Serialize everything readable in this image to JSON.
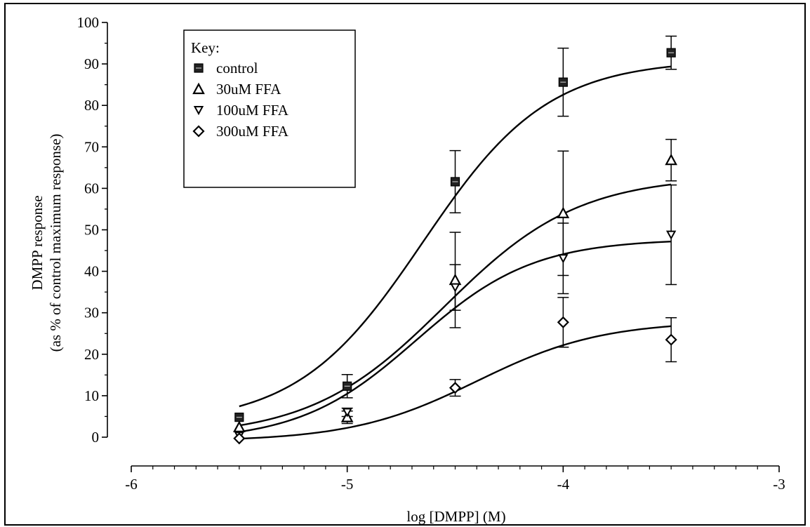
{
  "chart_data": {
    "type": "line",
    "title": "",
    "xlabel": "log [DMPP] (M)",
    "ylabel_line1": "DMPP response",
    "ylabel_line2": "(as % of control maximum response)",
    "xlim": [
      -6,
      -3
    ],
    "ylim": [
      0,
      100
    ],
    "x_ticks": [
      -6,
      -5,
      -4,
      -3
    ],
    "y_ticks": [
      0,
      10,
      20,
      30,
      40,
      50,
      60,
      70,
      80,
      90,
      100
    ],
    "grid": false,
    "legend_title": "Key:",
    "legend_position": "top-left",
    "series": [
      {
        "name": "control",
        "marker": "square",
        "x": [
          -5.5,
          -5.0,
          -4.5,
          -4.0,
          -3.5
        ],
        "y": [
          4.8,
          12.3,
          61.6,
          85.6,
          92.7
        ],
        "err": [
          0.5,
          2.8,
          7.5,
          8.2,
          4.0
        ],
        "fit": {
          "bottom": 3,
          "top": 91,
          "logec50": -4.65,
          "hill": 1.5
        }
      },
      {
        "name": "30uM FFA",
        "marker": "triangle-up",
        "x": [
          -5.5,
          -5.0,
          -4.5,
          -4.0,
          -3.5
        ],
        "y": [
          2.4,
          4.8,
          37.9,
          54.0,
          66.8
        ],
        "err": [
          0.5,
          1.5,
          11.5,
          15.0,
          5.0
        ],
        "fit": {
          "bottom": 0,
          "top": 63,
          "logec50": -4.55,
          "hill": 1.4
        }
      },
      {
        "name": "100uM FFA",
        "marker": "triangle-down",
        "x": [
          -5.5,
          -5.0,
          -4.5,
          -4.0,
          -3.5
        ],
        "y": [
          0.3,
          6.0,
          36.1,
          43.1,
          48.8
        ],
        "err": [
          0.3,
          1.0,
          5.5,
          8.5,
          12.0
        ],
        "fit": {
          "bottom": -1,
          "top": 47.8,
          "logec50": -4.68,
          "hill": 1.6
        }
      },
      {
        "name": "300uM FFA",
        "marker": "diamond",
        "x": [
          -5.5,
          -5.0,
          -4.5,
          -4.0,
          -3.5
        ],
        "y": [
          -0.3,
          null,
          11.9,
          27.7,
          23.5
        ],
        "err": [
          0.3,
          null,
          2.0,
          6.0,
          5.3
        ],
        "fit": {
          "bottom": -1,
          "top": 28,
          "logec50": -4.4,
          "hill": 1.5
        }
      }
    ]
  }
}
